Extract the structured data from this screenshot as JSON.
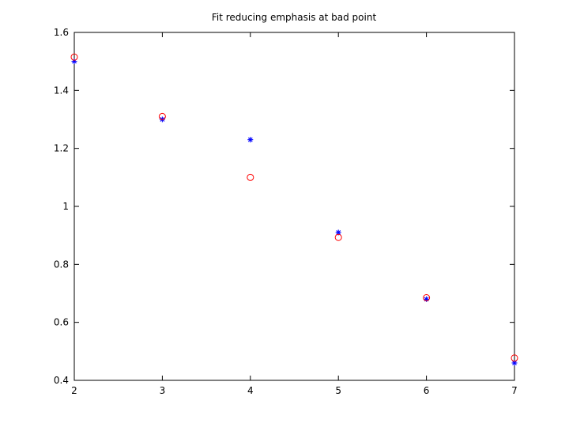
{
  "chart_data": {
    "type": "scatter",
    "title": "Fit reducing emphasis at bad point",
    "xlabel": "",
    "ylabel": "",
    "xlim": [
      2,
      7
    ],
    "ylim": [
      0.4,
      1.6
    ],
    "x_ticks": [
      2,
      3,
      4,
      5,
      6,
      7
    ],
    "y_ticks": [
      0.4,
      0.6,
      0.8,
      1,
      1.2,
      1.4,
      1.6
    ],
    "y_tick_labels": [
      "0.4",
      "0.6",
      "0.8",
      "1",
      "1.2",
      "1.4",
      "1.6"
    ],
    "grid": false,
    "series": [
      {
        "marker": "asterisk",
        "color": "#0000ff",
        "x": [
          2,
          3,
          4,
          5,
          6,
          7
        ],
        "y": [
          1.5,
          1.3,
          1.23,
          0.91,
          0.68,
          0.46
        ]
      },
      {
        "marker": "circle",
        "color": "#ff0000",
        "x": [
          2,
          3,
          4,
          5,
          6,
          7
        ],
        "y": [
          1.515,
          1.31,
          1.1,
          0.893,
          0.685,
          0.477
        ]
      }
    ]
  }
}
